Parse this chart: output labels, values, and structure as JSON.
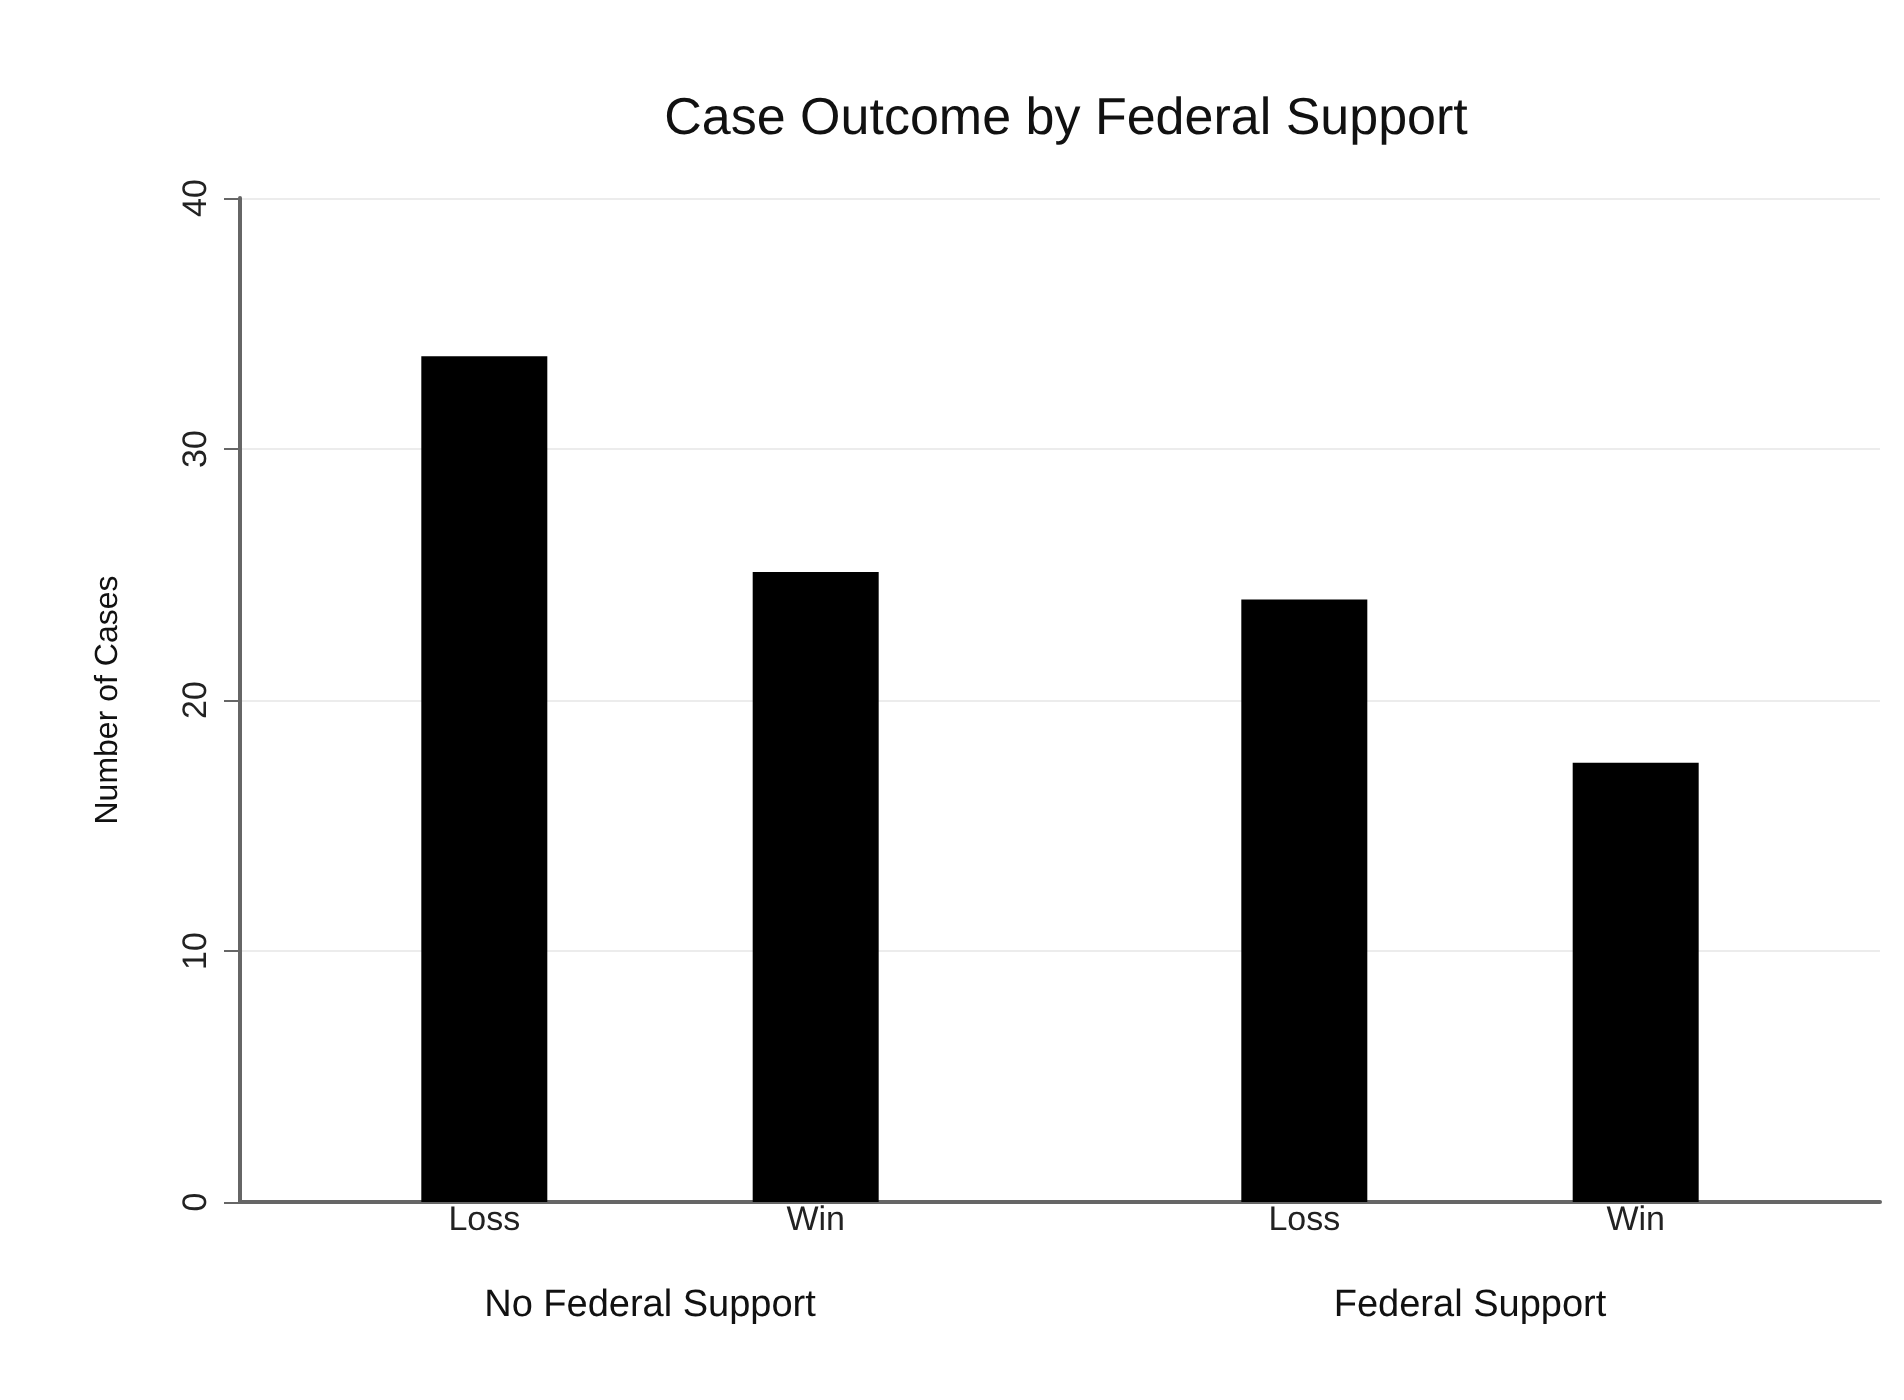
{
  "chart_data": {
    "type": "bar",
    "title": "Case Outcome by Federal Support",
    "ylabel": "Number of Cases",
    "categories": [
      "No Federal Support",
      "Federal Support"
    ],
    "series": [
      {
        "name": "Loss",
        "color": "#000000",
        "values": [
          33.7,
          24
        ]
      },
      {
        "name": "Win",
        "color": "#000000",
        "values": [
          25.1,
          17.5
        ]
      }
    ],
    "ylim": [
      0,
      40
    ],
    "yticks": [
      0,
      10,
      20,
      30,
      40
    ],
    "grid": "y"
  }
}
